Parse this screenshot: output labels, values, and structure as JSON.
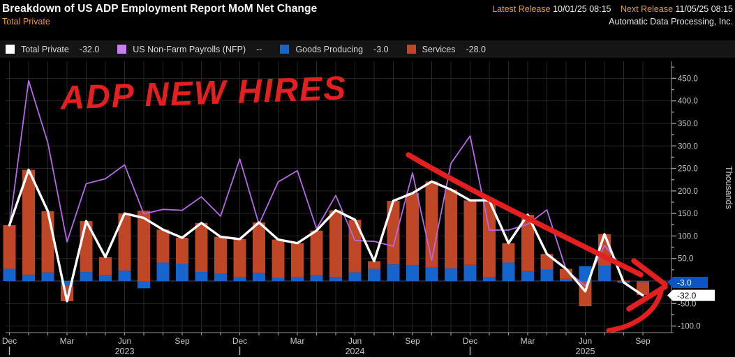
{
  "header": {
    "title": "Breakdown of US ADP Employment Report MoM Net Change",
    "subtitle": "Total Private",
    "latest_release_label": "Latest Release",
    "latest_release_value": "10/01/25 08:15",
    "next_release_label": "Next Release",
    "next_release_value": "11/05/25 08:15",
    "company": "Automatic Data Processing, Inc."
  },
  "legend": {
    "items": [
      {
        "label": "Total Private",
        "value": "-32.0",
        "color": "#ffffff"
      },
      {
        "label": "US Non-Farm Payrolls (NFP)",
        "value": "--",
        "color": "#c77ff0"
      },
      {
        "label": "Goods Producing",
        "value": "-3.0",
        "color": "#1565cc"
      },
      {
        "label": "Services",
        "value": "-28.0",
        "color": "#bf4626"
      }
    ]
  },
  "annotation": {
    "text": "ADP NEW HIRES",
    "color": "#e31f1f"
  },
  "axes": {
    "y_title": "Thousands",
    "y_labels": [
      {
        "v": 450,
        "t": "450.0"
      },
      {
        "v": 400,
        "t": "400.0"
      },
      {
        "v": 350,
        "t": "350.0"
      },
      {
        "v": 300,
        "t": "300.0"
      },
      {
        "v": 250,
        "t": "250.0"
      },
      {
        "v": 200,
        "t": "200.0"
      },
      {
        "v": 150,
        "t": "150.0"
      },
      {
        "v": 100,
        "t": "100.0"
      },
      {
        "v": 50,
        "t": "50.0"
      },
      {
        "v": -50,
        "t": "-50.0"
      },
      {
        "v": -100,
        "t": "-100.0"
      }
    ],
    "x_labels": [
      {
        "i": 0,
        "t": "Dec"
      },
      {
        "i": 3,
        "t": "Mar"
      },
      {
        "i": 6,
        "t": "Jun"
      },
      {
        "i": 9,
        "t": "Sep"
      },
      {
        "i": 12,
        "t": "Dec"
      },
      {
        "i": 15,
        "t": "Mar"
      },
      {
        "i": 18,
        "t": "Jun"
      },
      {
        "i": 21,
        "t": "Sep"
      },
      {
        "i": 24,
        "t": "Dec"
      },
      {
        "i": 27,
        "t": "Mar"
      },
      {
        "i": 30,
        "t": "Jun"
      },
      {
        "i": 33,
        "t": "Sep"
      }
    ],
    "x_year_labels": [
      {
        "i": 6,
        "t": "2023"
      },
      {
        "i": 18,
        "t": "2024"
      },
      {
        "i": 30,
        "t": "2025"
      }
    ],
    "x_year_ticks": [
      0,
      12,
      24
    ]
  },
  "badges": [
    {
      "series": "Goods Producing",
      "text": "-3.0",
      "value": -3,
      "bg": "#0d55c4",
      "fg": "#ffffff",
      "w": 50
    },
    {
      "series": "Total Private",
      "text": "-32.0",
      "value": -32,
      "bg": "#ffffff",
      "fg": "#000000",
      "w": 60
    }
  ],
  "chart_data": {
    "type": "combo: stacked-bar + line",
    "title": "Breakdown of US ADP Employment Report MoM Net Change",
    "ylabel": "Thousands",
    "ylim": [
      -100,
      490
    ],
    "grid": true,
    "legend_position": "top",
    "x": [
      "Dec 2022",
      "Jan 2023",
      "Feb 2023",
      "Mar 2023",
      "Apr 2023",
      "May 2023",
      "Jun 2023",
      "Jul 2023",
      "Aug 2023",
      "Sep 2023",
      "Oct 2023",
      "Nov 2023",
      "Dec 2023",
      "Jan 2024",
      "Feb 2024",
      "Mar 2024",
      "Apr 2024",
      "May 2024",
      "Jun 2024",
      "Jul 2024",
      "Aug 2024",
      "Sep 2024",
      "Oct 2024",
      "Nov 2024",
      "Dec 2024",
      "Jan 2025",
      "Feb 2025",
      "Mar 2025",
      "Apr 2025",
      "May 2025",
      "Jun 2025",
      "Jul 2025",
      "Aug 2025",
      "Sep 2025"
    ],
    "series": [
      {
        "name": "Total Private",
        "type": "line",
        "color": "#ffffff",
        "values": [
          124,
          247,
          155,
          -45,
          133,
          53,
          150,
          140,
          114,
          96,
          129,
          98,
          93,
          130,
          92,
          84,
          112,
          157,
          136,
          44,
          178,
          195,
          221,
          203,
          179,
          179,
          84,
          147,
          60,
          27,
          -23,
          104,
          -3,
          -32
        ]
      },
      {
        "name": "US Non-Farm Payrolls (NFP)",
        "type": "line",
        "color": "#b569e6",
        "values": [
          121,
          445,
          307,
          87,
          216,
          227,
          258,
          149,
          159,
          157,
          187,
          144,
          271,
          126,
          220,
          245,
          116,
          190,
          90,
          88,
          77,
          240,
          46,
          261,
          322,
          113,
          113,
          126,
          158,
          25,
          -11,
          79,
          27,
          null
        ]
      },
      {
        "name": "Goods Producing",
        "type": "bar-stacked",
        "color": "#1565cc",
        "values": [
          27,
          14,
          19,
          -10,
          20,
          12,
          23,
          -16,
          41,
          38,
          20,
          17,
          8,
          18,
          7,
          8,
          12,
          9,
          19,
          27,
          37,
          35,
          31,
          28,
          36,
          8,
          41,
          22,
          25,
          5,
          33,
          34,
          -4,
          -3
        ]
      },
      {
        "name": "Services",
        "type": "bar-stacked",
        "color": "#bf4626",
        "values": [
          97,
          233,
          136,
          -35,
          113,
          41,
          127,
          156,
          73,
          58,
          109,
          81,
          85,
          112,
          85,
          76,
          100,
          148,
          117,
          17,
          141,
          160,
          190,
          175,
          143,
          171,
          43,
          125,
          35,
          22,
          -56,
          70,
          1,
          -28
        ]
      }
    ]
  },
  "colors": {
    "background": "#000000",
    "grid": "#262626",
    "zero_line": "#4a4a4a",
    "axis": "#9a9a9a",
    "tick_text": "#c9c9c9",
    "accent_orange": "#e5993a",
    "bar_goods": "#1565cc",
    "bar_services": "#bf4626",
    "line_total": "#ffffff",
    "line_nfp": "#b569e6",
    "red_annotation": "#e31f1f"
  }
}
